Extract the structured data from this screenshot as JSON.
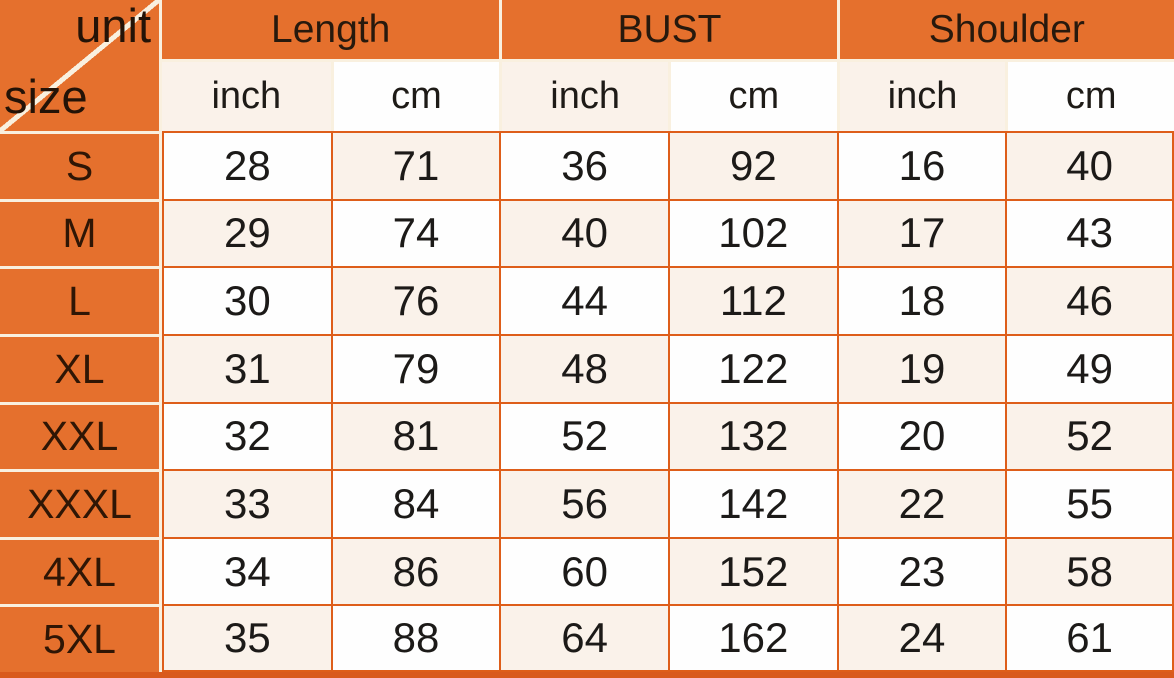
{
  "chart_data": {
    "type": "table",
    "corner": {
      "top_label": "unit",
      "bottom_label": "size"
    },
    "column_groups": [
      "Length",
      "BUST",
      "Shoulder"
    ],
    "columns": [
      "inch",
      "cm",
      "inch",
      "cm",
      "inch",
      "cm"
    ],
    "rows": [
      {
        "size": "S",
        "values": [
          "28",
          "71",
          "36",
          "92",
          "16",
          "40"
        ]
      },
      {
        "size": "M",
        "values": [
          "29",
          "74",
          "40",
          "102",
          "17",
          "43"
        ]
      },
      {
        "size": "L",
        "values": [
          "30",
          "76",
          "44",
          "112",
          "18",
          "46"
        ]
      },
      {
        "size": "XL",
        "values": [
          "31",
          "79",
          "48",
          "122",
          "19",
          "49"
        ]
      },
      {
        "size": "XXL",
        "values": [
          "32",
          "81",
          "52",
          "132",
          "20",
          "52"
        ]
      },
      {
        "size": "XXXL",
        "values": [
          "33",
          "84",
          "56",
          "142",
          "22",
          "55"
        ]
      },
      {
        "size": "4XL",
        "values": [
          "34",
          "86",
          "60",
          "152",
          "23",
          "58"
        ]
      },
      {
        "size": "5XL",
        "values": [
          "35",
          "88",
          "64",
          "162",
          "24",
          "61"
        ]
      }
    ]
  },
  "colors": {
    "orange": "#E5702D",
    "border_orange": "#DE5E1A",
    "cream_line": "#F9F0DF",
    "cell_cream": "#FAF2EA",
    "cell_white": "#FEFEFE",
    "bottom_strip": "#D95A1D",
    "text_dark": "#1C1A18",
    "size_text": "#2F1605"
  }
}
